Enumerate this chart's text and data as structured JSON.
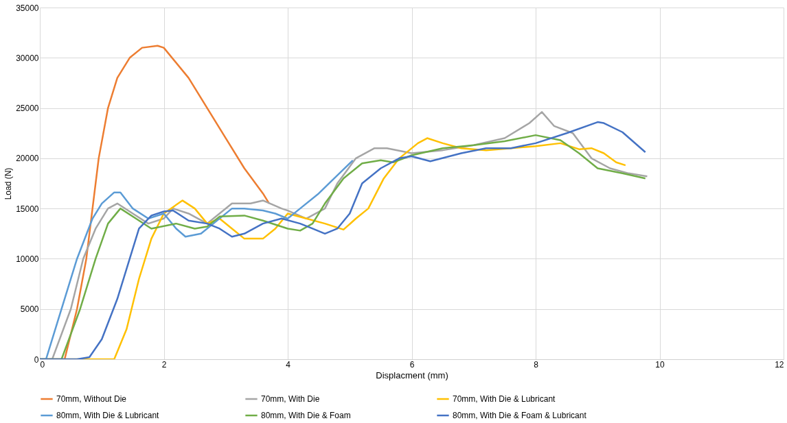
{
  "chart_data": {
    "type": "line",
    "xlabel": "Displacment (mm)",
    "ylabel": "Load (N)",
    "xlim": [
      0,
      12
    ],
    "xticks": [
      0,
      2,
      4,
      6,
      8,
      10,
      12
    ],
    "ylim": [
      0,
      35000
    ],
    "yticks": [
      0,
      5000,
      10000,
      15000,
      20000,
      25000,
      30000,
      35000
    ],
    "grid": true,
    "legend": "bottom",
    "marker": "none",
    "line_style": "solid",
    "series": [
      {
        "name": "70mm, Without Die",
        "color": "#ed7d31",
        "x": [
          0,
          0.4,
          0.6,
          0.75,
          0.85,
          0.95,
          1.1,
          1.25,
          1.45,
          1.65,
          1.9,
          2.0,
          2.4,
          2.7,
          3.0,
          3.3,
          3.6,
          3.7
        ],
        "values": [
          0,
          0,
          5000,
          10000,
          15000,
          20000,
          25000,
          28000,
          30000,
          31000,
          31200,
          31000,
          28000,
          25000,
          22000,
          19000,
          16500,
          15500
        ]
      },
      {
        "name": "70mm, With Die",
        "color": "#a5a5a5",
        "x": [
          0,
          0.2,
          0.5,
          0.7,
          0.9,
          1.1,
          1.25,
          1.5,
          1.75,
          2.0,
          2.15,
          2.4,
          2.7,
          2.8,
          3.1,
          3.4,
          3.6,
          3.9,
          4.0,
          4.3,
          4.6,
          4.8,
          5.1,
          5.4,
          5.6,
          6.0,
          6.5,
          7.0,
          7.5,
          7.9,
          8.1,
          8.3,
          8.6,
          8.9,
          9.2,
          9.5,
          9.8
        ],
        "values": [
          0,
          0,
          5000,
          10000,
          13000,
          15000,
          15500,
          14500,
          13500,
          14000,
          15000,
          14500,
          13500,
          14000,
          15500,
          15500,
          15800,
          15000,
          14800,
          14000,
          15000,
          17500,
          20000,
          21000,
          21000,
          20500,
          20800,
          21300,
          22000,
          23500,
          24600,
          23200,
          22500,
          20000,
          19000,
          18500,
          18200
        ]
      },
      {
        "name": "70mm, With Die & Lubricant",
        "color": "#ffc000",
        "x": [
          0,
          1.2,
          1.4,
          1.6,
          1.8,
          2.0,
          2.3,
          2.5,
          2.7,
          2.9,
          3.1,
          3.3,
          3.6,
          3.8,
          4.0,
          4.3,
          4.6,
          4.9,
          5.1,
          5.3,
          5.55,
          5.8,
          6.1,
          6.25,
          6.5,
          6.8,
          7.2,
          7.6,
          8.0,
          8.4,
          8.7,
          8.9,
          9.1,
          9.3,
          9.45
        ],
        "values": [
          0,
          0,
          3000,
          8000,
          12000,
          14500,
          15800,
          15000,
          13500,
          14000,
          13000,
          12000,
          12000,
          13000,
          14500,
          14000,
          13500,
          12900,
          14000,
          15000,
          18000,
          20000,
          21500,
          22000,
          21500,
          21000,
          20800,
          21000,
          21200,
          21500,
          20900,
          21000,
          20500,
          19600,
          19300
        ]
      },
      {
        "name": "80mm, With Die & Lubricant",
        "color": "#5b9bd5",
        "x": [
          0,
          0.1,
          0.35,
          0.6,
          0.85,
          1.0,
          1.2,
          1.3,
          1.5,
          1.75,
          2.0,
          2.2,
          2.35,
          2.6,
          2.8,
          3.1,
          3.3,
          3.6,
          3.8,
          4.0,
          4.2,
          4.5,
          4.75,
          5.05
        ],
        "values": [
          0,
          0,
          5000,
          10000,
          14000,
          15500,
          16600,
          16600,
          15000,
          14000,
          14500,
          13000,
          12200,
          12500,
          13500,
          15000,
          15000,
          14800,
          14500,
          14000,
          15000,
          16500,
          18000,
          19800
        ]
      },
      {
        "name": "80mm, With Die & Foam",
        "color": "#70ad47",
        "x": [
          0,
          0.35,
          0.65,
          0.9,
          1.1,
          1.3,
          1.55,
          1.8,
          2.2,
          2.5,
          2.7,
          2.9,
          3.3,
          3.6,
          4.0,
          4.2,
          4.4,
          4.6,
          4.9,
          5.2,
          5.5,
          5.7,
          6.0,
          6.5,
          7.0,
          7.5,
          8.0,
          8.4,
          8.7,
          9.0,
          9.4,
          9.77
        ],
        "values": [
          0,
          0,
          5000,
          10000,
          13500,
          15000,
          14000,
          13000,
          13500,
          13000,
          13200,
          14200,
          14300,
          13800,
          13000,
          12800,
          13500,
          15500,
          18000,
          19500,
          19800,
          19600,
          20300,
          21000,
          21300,
          21700,
          22300,
          21800,
          20500,
          19000,
          18500,
          18000
        ]
      },
      {
        "name": "80mm, With Die & Foam & Lubricant",
        "color": "#4472c4",
        "x": [
          0,
          0.6,
          0.8,
          1.0,
          1.25,
          1.45,
          1.6,
          1.8,
          2.0,
          2.15,
          2.4,
          2.7,
          2.9,
          3.1,
          3.3,
          3.6,
          3.9,
          4.2,
          4.4,
          4.6,
          4.8,
          5.0,
          5.2,
          5.5,
          5.8,
          6.0,
          6.3,
          6.8,
          7.2,
          7.6,
          8.0,
          8.5,
          9.0,
          9.1,
          9.4,
          9.77
        ],
        "values": [
          0,
          0,
          200,
          2000,
          6000,
          10000,
          13000,
          14300,
          14700,
          14800,
          13800,
          13500,
          13000,
          12200,
          12500,
          13500,
          14000,
          13500,
          13000,
          12500,
          13000,
          14500,
          17500,
          19000,
          20000,
          20200,
          19700,
          20500,
          21000,
          21000,
          21500,
          22500,
          23600,
          23500,
          22600,
          20600
        ]
      }
    ]
  }
}
